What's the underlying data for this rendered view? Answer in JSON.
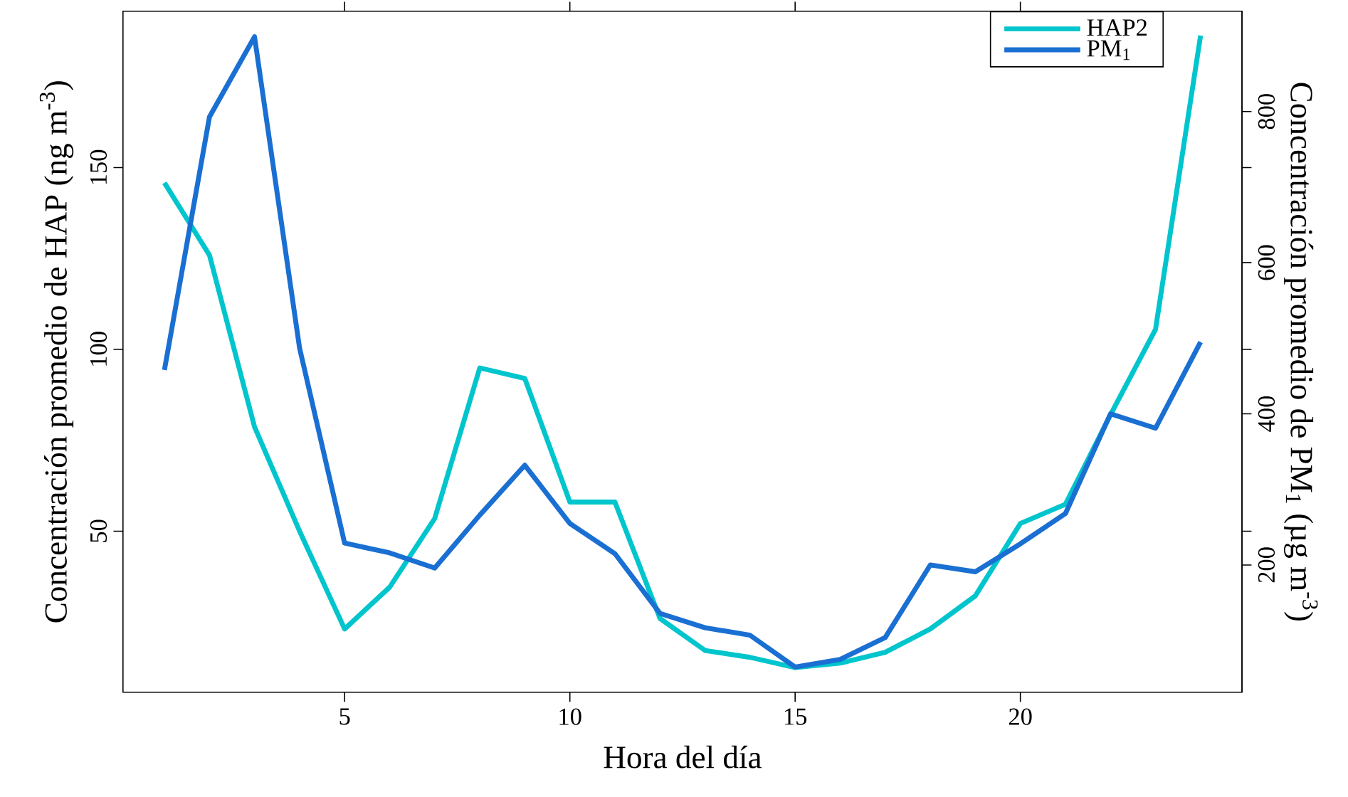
{
  "chart_data": {
    "type": "line",
    "xlabel": "Hora del día",
    "ylabel": "Concentración promedio de HAP (ng m$^{-3}$)",
    "y2label": "Concentración promedio de PM$_{1}$ (µg m$^{-3}$)",
    "x": [
      1,
      2,
      3,
      4,
      5,
      6,
      7,
      8,
      9,
      10,
      11,
      12,
      13,
      14,
      15,
      16,
      17,
      18,
      19,
      20,
      21,
      22,
      23,
      24
    ],
    "series": [
      {
        "name": "HAP2",
        "color": "#00c5cd",
        "values": [
          145.8,
          125.9,
          78.7,
          50,
          23.1,
          34.6,
          53.5,
          94.9,
          92.0,
          58.0,
          58.0,
          26.0,
          17.2,
          15.3,
          12.5,
          13.7,
          16.7,
          23.1,
          32.2,
          52.1,
          57.4,
          82.0,
          105.5,
          186.3
        ]
      },
      {
        "name": "PM$_{1}$",
        "color": "#1a6fd2",
        "axis": "y2",
        "values": [
          458,
          793,
          899,
          487,
          229,
          216,
          196,
          266,
          332,
          255,
          215,
          136,
          117,
          107,
          65,
          75,
          104,
          200,
          191,
          228,
          268,
          400,
          381,
          495
        ]
      }
    ],
    "xlim": [
      0.08,
      24.92
    ],
    "xticks": [
      5,
      10,
      15,
      20
    ],
    "ylim": [
      5.7,
      193
    ],
    "yticks": [
      50,
      100,
      150
    ],
    "y2lim": [
      31.6,
      932.8
    ],
    "y2ticks": [
      200,
      400,
      600,
      800
    ],
    "legend": "top right",
    "grid": false,
    "marker": "none",
    "line_style": "solid"
  }
}
